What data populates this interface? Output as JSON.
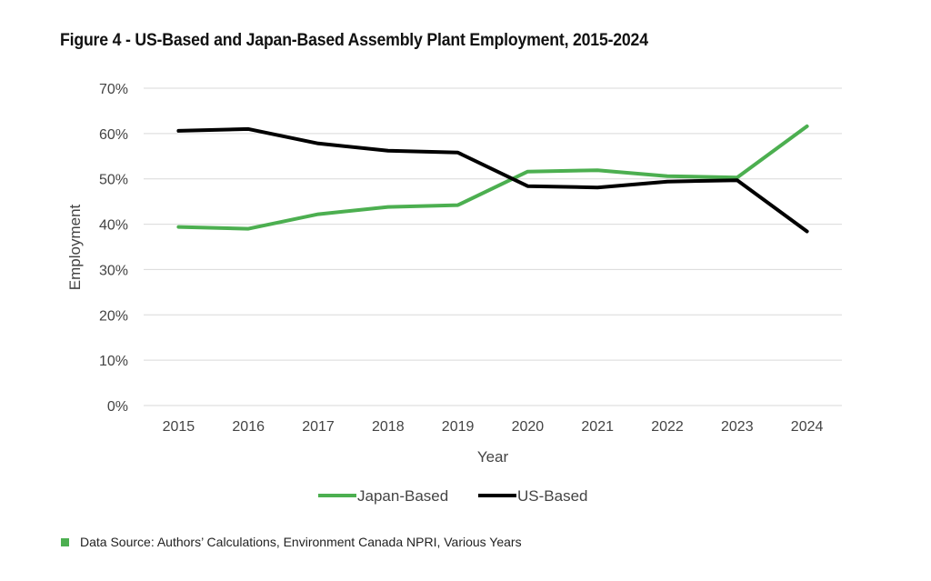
{
  "figure": {
    "title": "Figure 4 - US-Based and Japan-Based Assembly Plant Employment, 2015-2024",
    "source_note": "Data Source: Authors’ Calculations, Environment Canada NPRI, Various Years"
  },
  "chart_data": {
    "type": "line",
    "title": "Figure 4 - US-Based and Japan-Based Assembly Plant Employment, 2015-2024",
    "xlabel": "Year",
    "ylabel": "Employment",
    "x": [
      "2015",
      "2016",
      "2017",
      "2018",
      "2019",
      "2020",
      "2021",
      "2022",
      "2023",
      "2024"
    ],
    "ylim": [
      0,
      70
    ],
    "yticks": [
      0,
      10,
      20,
      30,
      40,
      50,
      60,
      70
    ],
    "ytick_labels": [
      "0%",
      "10%",
      "20%",
      "30%",
      "40%",
      "50%",
      "60%",
      "70%"
    ],
    "grid": true,
    "legend_position": "bottom",
    "series": [
      {
        "name": "Japan-Based",
        "color": "#4caf50",
        "values": [
          39.4,
          39.0,
          42.2,
          43.8,
          44.2,
          51.6,
          51.9,
          50.6,
          50.3,
          61.6
        ]
      },
      {
        "name": "US-Based",
        "color": "#000000",
        "values": [
          60.6,
          61.0,
          57.8,
          56.2,
          55.8,
          48.4,
          48.1,
          49.4,
          49.7,
          38.4
        ]
      }
    ]
  }
}
